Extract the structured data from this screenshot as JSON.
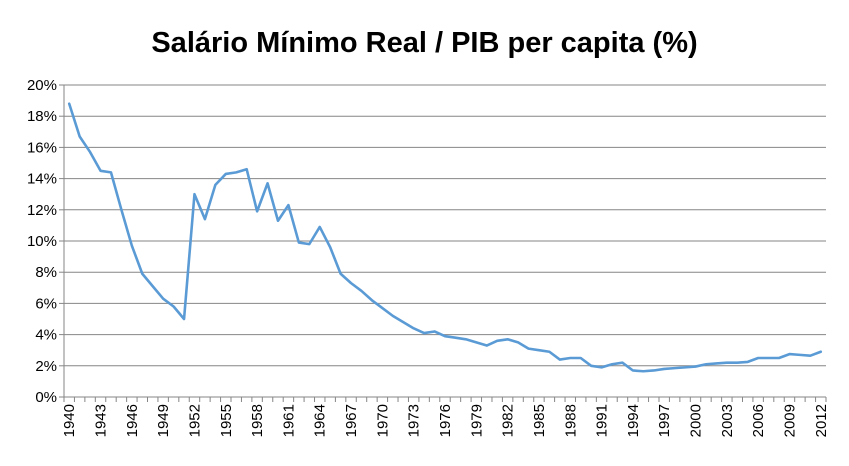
{
  "chart_data": {
    "type": "line",
    "title": "Salário Mínimo Real / PIB per capita (%)",
    "xlabel": "",
    "ylabel": "",
    "ylim": [
      0,
      20
    ],
    "xlim": [
      1940,
      2012
    ],
    "y_ticks": [
      0,
      2,
      4,
      6,
      8,
      10,
      12,
      14,
      16,
      18,
      20
    ],
    "y_tick_labels": [
      "0%",
      "2%",
      "4%",
      "6%",
      "8%",
      "10%",
      "12%",
      "14%",
      "16%",
      "18%",
      "20%"
    ],
    "x_tick_labels": [
      "1940",
      "1943",
      "1946",
      "1949",
      "1952",
      "1955",
      "1958",
      "1961",
      "1964",
      "1967",
      "1970",
      "1973",
      "1976",
      "1979",
      "1982",
      "1985",
      "1988",
      "1991",
      "1994",
      "1997",
      "2000",
      "2003",
      "2006",
      "2009",
      "2012"
    ],
    "grid": true,
    "legend": "none",
    "color": "#5B9BD5",
    "x": [
      1940,
      1941,
      1942,
      1943,
      1944,
      1945,
      1946,
      1947,
      1948,
      1949,
      1950,
      1951,
      1952,
      1953,
      1954,
      1955,
      1956,
      1957,
      1958,
      1959,
      1960,
      1961,
      1962,
      1963,
      1964,
      1965,
      1966,
      1967,
      1968,
      1969,
      1970,
      1971,
      1972,
      1973,
      1974,
      1975,
      1976,
      1977,
      1978,
      1979,
      1980,
      1981,
      1982,
      1983,
      1984,
      1985,
      1986,
      1987,
      1988,
      1989,
      1990,
      1991,
      1992,
      1993,
      1994,
      1995,
      1996,
      1997,
      1998,
      1999,
      2000,
      2001,
      2002,
      2003,
      2004,
      2005,
      2006,
      2007,
      2008,
      2009,
      2010,
      2011,
      2012
    ],
    "values": [
      18.8,
      16.7,
      15.7,
      14.5,
      14.4,
      12.0,
      9.7,
      7.9,
      7.1,
      6.3,
      5.8,
      5.0,
      13.0,
      11.4,
      13.6,
      14.3,
      14.4,
      14.6,
      11.9,
      13.7,
      11.3,
      12.3,
      9.9,
      9.8,
      10.9,
      9.6,
      7.9,
      7.3,
      6.8,
      6.2,
      5.7,
      5.2,
      4.8,
      4.4,
      4.1,
      4.2,
      3.9,
      3.8,
      3.7,
      3.5,
      3.3,
      3.6,
      3.7,
      3.5,
      3.1,
      3.0,
      2.9,
      2.4,
      2.5,
      2.5,
      2.0,
      1.9,
      2.1,
      2.2,
      1.7,
      1.65,
      1.7,
      1.8,
      1.85,
      1.9,
      1.95,
      2.1,
      2.15,
      2.2,
      2.2,
      2.25,
      2.5,
      2.5,
      2.5,
      2.75,
      2.7,
      2.65,
      2.9
    ]
  }
}
